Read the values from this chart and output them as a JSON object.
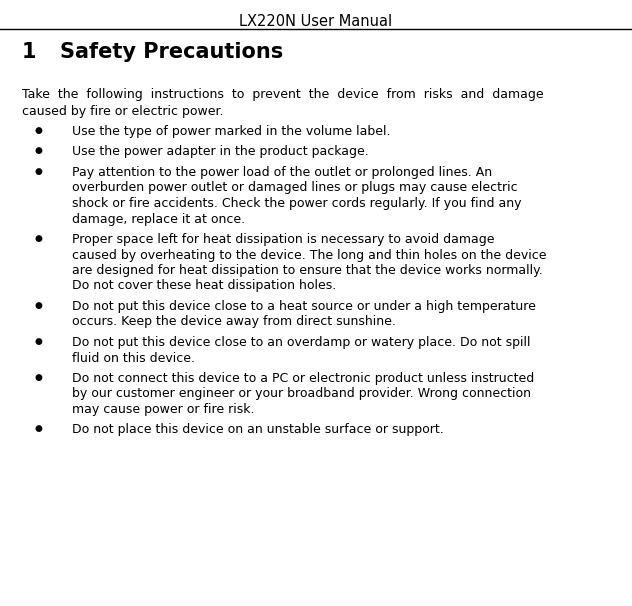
{
  "header_title": "LX220N User Manual",
  "section_number": "1",
  "section_title": "Safety Precautions",
  "bg_color": "#ffffff",
  "text_color": "#000000",
  "header_fontsize": 10.5,
  "section_fontsize": 15,
  "body_fontsize": 9.0,
  "bullet_fontsize": 9.0,
  "line_color": "#000000",
  "intro_lines": [
    "Take  the  following  instructions  to  prevent  the  device  from  risks  and  damage",
    "caused by fire or electric power."
  ],
  "bullets": [
    [
      "Use the type of power marked in the volume label."
    ],
    [
      "Use the power adapter in the product package."
    ],
    [
      "Pay attention to the power load of the outlet or prolonged lines. An",
      "overburden power outlet or damaged lines or plugs may cause electric",
      "shock or fire accidents. Check the power cords regularly. If you find any",
      "damage, replace it at once."
    ],
    [
      "Proper space left for heat dissipation is necessary to avoid damage",
      "caused by overheating to the device. The long and thin holes on the device",
      "are designed for heat dissipation to ensure that the device works normally.",
      "Do not cover these heat dissipation holes."
    ],
    [
      "Do not put this device close to a heat source or under a high temperature",
      "occurs. Keep the device away from direct sunshine."
    ],
    [
      "Do not put this device close to an overdamp or watery place. Do not spill",
      "fluid on this device."
    ],
    [
      "Do not connect this device to a PC or electronic product unless instructed",
      "by our customer engineer or your broadband provider. Wrong connection",
      "may cause power or fire risk."
    ],
    [
      "Do not place this device on an unstable surface or support."
    ]
  ]
}
